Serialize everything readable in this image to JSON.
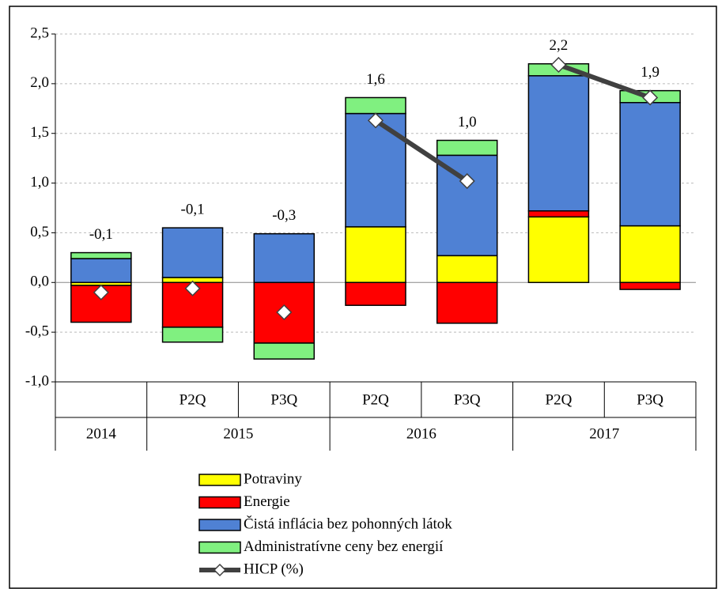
{
  "chart_data": {
    "type": "stacked-bar-line",
    "categories": [
      [
        "2014",
        null
      ],
      [
        "2015",
        "P2Q"
      ],
      [
        "2015",
        "P3Q"
      ],
      [
        "2016",
        "P2Q"
      ],
      [
        "2016",
        "P3Q"
      ],
      [
        "2017",
        "P2Q"
      ],
      [
        "2017",
        "P3Q"
      ]
    ],
    "series": [
      {
        "name": "Potraviny",
        "color": "#ffff00",
        "values": [
          -0.03,
          0.05,
          0,
          0.56,
          0.27,
          0.66,
          0.57
        ]
      },
      {
        "name": "Energie",
        "color": "#ff0000",
        "values": [
          -0.37,
          -0.45,
          -0.61,
          -0.23,
          -0.41,
          0.06,
          -0.07
        ]
      },
      {
        "name": "Čistá inflácia bez pohonných látok",
        "color": "#4f81d4",
        "values": [
          0.24,
          0.5,
          0.49,
          1.14,
          1.01,
          1.36,
          1.24
        ]
      },
      {
        "name": "Administratívne ceny bez energií",
        "color": "#80f080",
        "values": [
          0.06,
          -0.15,
          -0.16,
          0.16,
          0.15,
          0.12,
          0.12
        ]
      },
      {
        "name": "HICP (%)",
        "type": "line",
        "color": "#404040",
        "values": [
          -0.1,
          -0.06,
          -0.3,
          1.63,
          1.02,
          2.19,
          1.86
        ],
        "value_labels": [
          "-0,1",
          "-0,1",
          "-0,3",
          "1,6",
          "1,0",
          "2,2",
          "1,9"
        ],
        "line_pieces": [
          [
            3,
            4
          ],
          [
            5,
            6
          ]
        ]
      }
    ],
    "ylim": [
      -1,
      2.5
    ],
    "yticks": [
      {
        "value": -1,
        "label": "-1,0"
      },
      {
        "value": -0.5,
        "label": "-0,5"
      },
      {
        "value": 0,
        "label": "0,0"
      },
      {
        "value": 0.5,
        "label": "0,5"
      },
      {
        "value": 1,
        "label": "1,0"
      },
      {
        "value": 1.5,
        "label": "1,5"
      },
      {
        "value": 2,
        "label": "2,0"
      },
      {
        "value": 2.5,
        "label": "2,5"
      }
    ],
    "grid": true
  }
}
